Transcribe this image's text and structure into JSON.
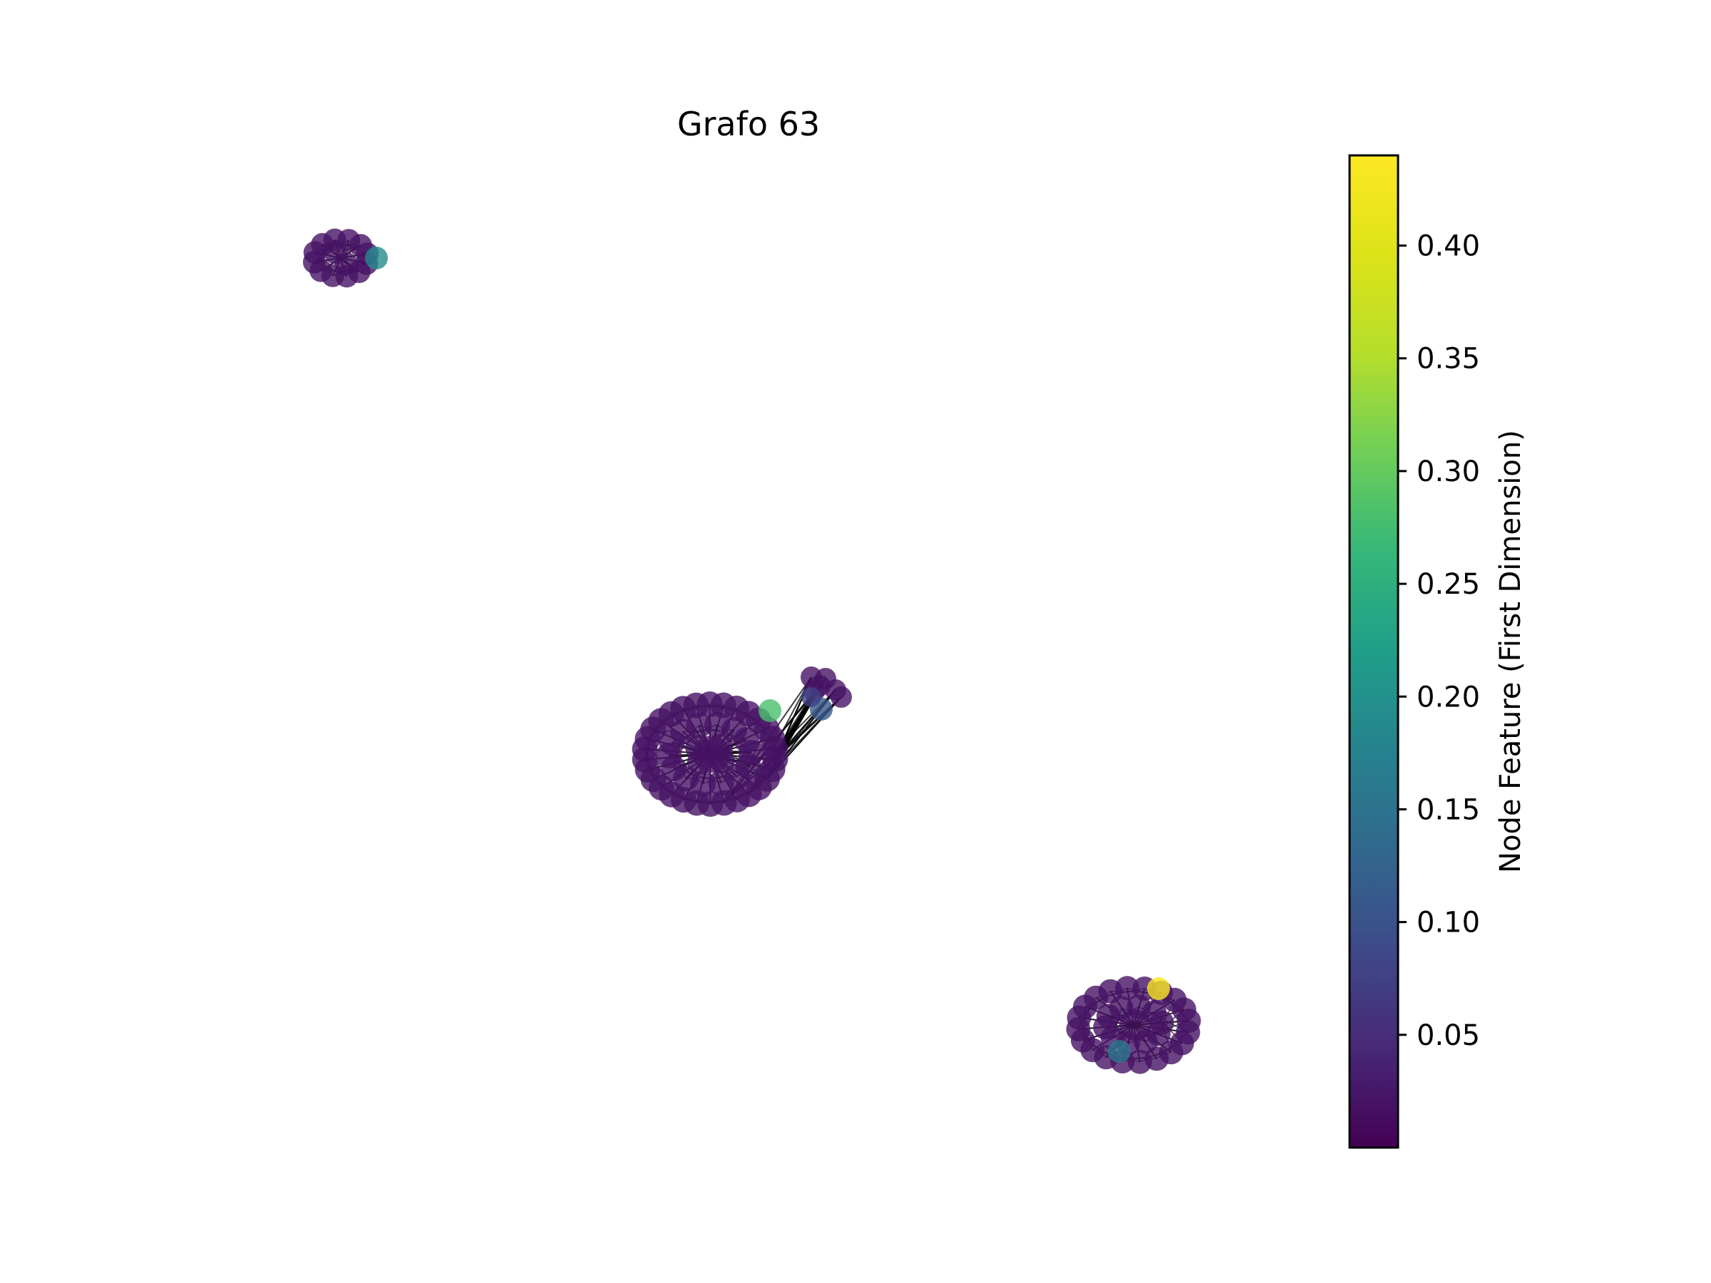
{
  "figure": {
    "title": "Grafo 63"
  },
  "colorbar": {
    "label": "Node Feature (First Dimension)",
    "min": 0.0,
    "max": 0.44,
    "ticks": [
      {
        "value": 0.05,
        "label": "0.05"
      },
      {
        "value": 0.1,
        "label": "0.10"
      },
      {
        "value": 0.15,
        "label": "0.15"
      },
      {
        "value": 0.2,
        "label": "0.20"
      },
      {
        "value": 0.25,
        "label": "0.25"
      },
      {
        "value": 0.3,
        "label": "0.30"
      },
      {
        "value": 0.35,
        "label": "0.35"
      },
      {
        "value": 0.4,
        "label": "0.40"
      }
    ],
    "colormap": "viridis"
  },
  "graph": {
    "components": [
      {
        "name": "component-top-left",
        "node_count": 14,
        "highlight_values": [
          0.19
        ]
      },
      {
        "name": "component-center",
        "node_count": 48,
        "highlight_values": [
          0.28,
          0.11,
          0.08
        ],
        "satellite_node_count": 6
      },
      {
        "name": "component-bottom-right",
        "node_count": 30,
        "highlight_values": [
          0.43,
          0.16
        ]
      }
    ],
    "base_node_value": 0.02,
    "node_opacity": 0.8
  }
}
